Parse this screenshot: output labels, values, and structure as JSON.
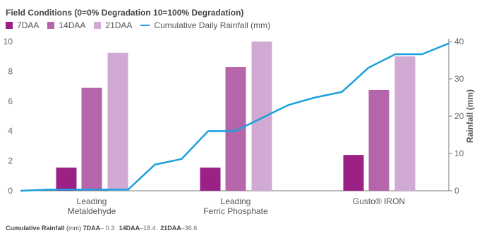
{
  "chart_data": {
    "type": "bar",
    "title": "Field Conditions (0=0% Degradation  10=100% Degradation)",
    "categories": [
      [
        "Leading",
        "Metaldehyde"
      ],
      [
        "Leading",
        "Ferric Phosphate"
      ],
      [
        "Gusto® IRON"
      ]
    ],
    "series": [
      {
        "name": "7DAA",
        "color": "#9b2185",
        "values": [
          1.55,
          1.55,
          2.4
        ]
      },
      {
        "name": "14DAA",
        "color": "#b566ab",
        "values": [
          6.9,
          8.3,
          6.75
        ]
      },
      {
        "name": "21DAA",
        "color": "#d0aad2",
        "values": [
          9.25,
          10,
          9.0
        ]
      }
    ],
    "line_series": {
      "name": "Cumulative Daily Rainfall (mm)",
      "color": "#1ba0db",
      "axis": "right",
      "values": [
        0,
        0.3,
        0.3,
        0.3,
        0.3,
        7,
        8.5,
        16,
        16,
        19.5,
        23,
        25,
        26.5,
        33,
        36.6,
        36.6,
        39.5
      ]
    },
    "ylim": [
      0,
      10
    ],
    "yticks": [
      0,
      2,
      4,
      6,
      8,
      10
    ],
    "y2label": "Rainfall (mm)",
    "y2lim": [
      0,
      40
    ],
    "y2ticks": [
      0,
      10,
      20,
      30,
      40
    ],
    "grid": false,
    "legend_position": "top-left"
  },
  "footnote": {
    "label": "Cumulative Rainfall",
    "unit": "(mm)",
    "items": [
      {
        "key": "7DAA",
        "value": "– 0.3"
      },
      {
        "key": "14DAA",
        "value": "–18.4"
      },
      {
        "key": "21DAA",
        "value": "–36.6"
      }
    ]
  }
}
